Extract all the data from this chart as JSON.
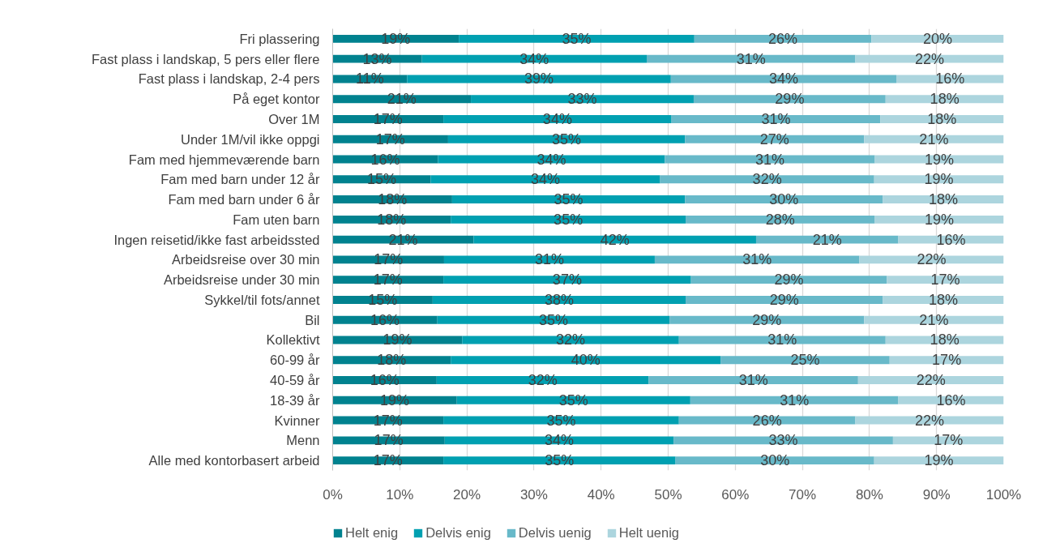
{
  "chart_data": {
    "type": "bar",
    "orientation": "horizontal",
    "stacked": true,
    "categories": [
      "Fri plassering",
      "Fast plass i landskap, 5 pers eller flere",
      "Fast plass i landskap, 2-4 pers",
      "På eget kontor",
      "Over 1M",
      "Under 1M/vil ikke oppgi",
      "Fam med hjemmeværende barn",
      "Fam med barn under 12 år",
      "Fam med barn under 6 år",
      "Fam uten barn",
      "Ingen reisetid/ikke fast arbeidssted",
      "Arbeidsreise over 30 min",
      "Arbeidsreise under 30 min",
      "Sykkel/til fots/annet",
      "Bil",
      "Kollektivt",
      "60-99 år",
      "40-59 år",
      "18-39 år",
      "Kvinner",
      "Menn",
      "Alle med kontorbasert arbeid"
    ],
    "series": [
      {
        "name": "Helt enig",
        "color": "#00828f",
        "values": [
          18.8,
          13.3,
          11.1,
          20.6,
          16.5,
          17.2,
          15.7,
          14.6,
          17.8,
          17.6,
          21.0,
          16.6,
          16.5,
          14.9,
          15.6,
          19.3,
          17.6,
          15.5,
          18.5,
          16.5,
          16.7,
          16.5
        ],
        "value_labels": [
          "19%",
          "13%",
          "11%",
          "21%",
          "17%",
          "17%",
          "16%",
          "15%",
          "18%",
          "18%",
          "21%",
          "17%",
          "17%",
          "15%",
          "16%",
          "19%",
          "18%",
          "16%",
          "19%",
          "17%",
          "17%",
          "17%"
        ]
      },
      {
        "name": "Delvis enig",
        "color": "#00a0b1",
        "values": [
          35.1,
          33.5,
          39.3,
          33.2,
          34.0,
          35.3,
          33.8,
          34.2,
          34.7,
          35.0,
          42.1,
          31.4,
          36.9,
          37.7,
          34.6,
          32.3,
          40.2,
          31.6,
          34.8,
          35.1,
          34.1,
          34.6
        ],
        "value_labels": [
          "35%",
          "34%",
          "39%",
          "33%",
          "34%",
          "35%",
          "34%",
          "34%",
          "35%",
          "35%",
          "42%",
          "31%",
          "37%",
          "38%",
          "35%",
          "32%",
          "40%",
          "32%",
          "35%",
          "35%",
          "34%",
          "35%"
        ]
      },
      {
        "name": "Delvis uenig",
        "color": "#68b9c9",
        "values": [
          26.4,
          31.1,
          33.6,
          28.6,
          31.1,
          26.7,
          31.3,
          31.9,
          29.5,
          28.2,
          21.2,
          30.5,
          29.2,
          29.4,
          29.0,
          30.8,
          25.2,
          31.2,
          31.0,
          26.3,
          32.7,
          29.6
        ],
        "value_labels": [
          "26%",
          "31%",
          "34%",
          "29%",
          "31%",
          "27%",
          "31%",
          "32%",
          "30%",
          "28%",
          "21%",
          "31%",
          "29%",
          "29%",
          "29%",
          "31%",
          "25%",
          "31%",
          "31%",
          "26%",
          "33%",
          "30%"
        ]
      },
      {
        "name": "Helt uenig",
        "color": "#acd5de",
        "values": [
          19.7,
          22.1,
          16.0,
          17.6,
          18.4,
          20.8,
          19.2,
          19.3,
          18.0,
          19.2,
          15.7,
          21.5,
          17.4,
          18.0,
          20.8,
          17.6,
          17.0,
          21.7,
          15.7,
          22.1,
          16.5,
          19.3
        ],
        "value_labels": [
          "20%",
          "22%",
          "16%",
          "18%",
          "18%",
          "21%",
          "19%",
          "19%",
          "18%",
          "19%",
          "16%",
          "22%",
          "17%",
          "18%",
          "21%",
          "18%",
          "17%",
          "22%",
          "16%",
          "22%",
          "17%",
          "19%"
        ]
      }
    ],
    "xlim": [
      0,
      100
    ],
    "xticks": [
      {
        "value": 0,
        "label": "0%"
      },
      {
        "value": 10,
        "label": "10%"
      },
      {
        "value": 20,
        "label": "20%"
      },
      {
        "value": 30,
        "label": "30%"
      },
      {
        "value": 40,
        "label": "40%"
      },
      {
        "value": 50,
        "label": "50%"
      },
      {
        "value": 60,
        "label": "60%"
      },
      {
        "value": 70,
        "label": "70%"
      },
      {
        "value": 80,
        "label": "80%"
      },
      {
        "value": 90,
        "label": "90%"
      },
      {
        "value": 100,
        "label": "100%"
      }
    ],
    "grid": "x",
    "legend": "bottom"
  }
}
